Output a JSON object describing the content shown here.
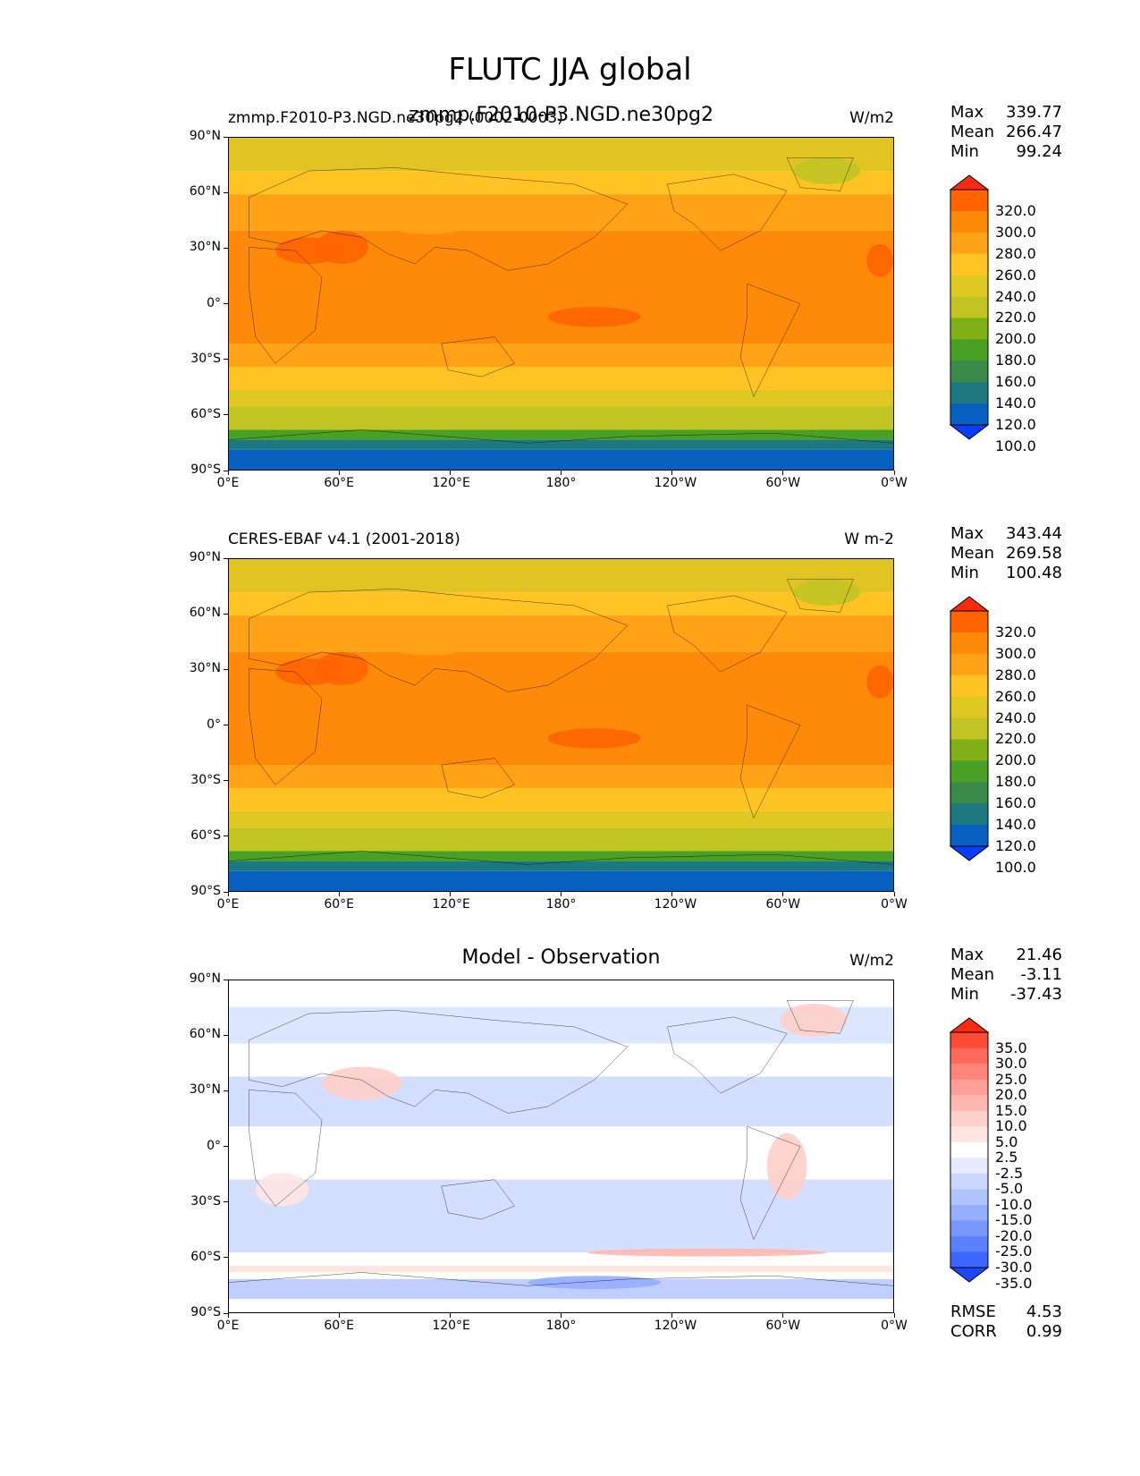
{
  "figure": {
    "title": "FLUTC JJA global"
  },
  "chart_data": [
    {
      "type": "heatmap",
      "title_left": "zmmp.F2010-P3.NGD.ne30pg2 (0002-0003)",
      "title_center": "zmmp.F2010-P3.NGD.ne30pg2",
      "units": "W/m2",
      "xtick_labels": [
        "0°E",
        "60°E",
        "120°E",
        "180°",
        "120°W",
        "60°W",
        "0°W"
      ],
      "ytick_labels": [
        "90°N",
        "60°N",
        "30°N",
        "0°",
        "30°S",
        "60°S",
        "90°S"
      ],
      "stats": {
        "Max": "339.77",
        "Mean": "266.47",
        "Min": "99.24"
      },
      "colorbar": {
        "levels": [
          "320.0",
          "300.0",
          "280.0",
          "260.0",
          "240.0",
          "220.0",
          "200.0",
          "180.0",
          "160.0",
          "140.0",
          "120.0",
          "100.0"
        ],
        "colors": [
          "#ff2a0a",
          "#ff6400",
          "#ff8a0a",
          "#ffa218",
          "#ffc423",
          "#e0c823",
          "#c2c423",
          "#80b015",
          "#48a025",
          "#3a8a4a",
          "#1e7880",
          "#0860c0",
          "#0a3cff"
        ]
      }
    },
    {
      "type": "heatmap",
      "title_left": "CERES-EBAF v4.1 (2001-2018)",
      "units": "W m-2",
      "xtick_labels": [
        "0°E",
        "60°E",
        "120°E",
        "180°",
        "120°W",
        "60°W",
        "0°W"
      ],
      "ytick_labels": [
        "90°N",
        "60°N",
        "30°N",
        "0°",
        "30°S",
        "60°S",
        "90°S"
      ],
      "stats": {
        "Max": "343.44",
        "Mean": "269.58",
        "Min": "100.48"
      },
      "colorbar": {
        "levels": [
          "320.0",
          "300.0",
          "280.0",
          "260.0",
          "240.0",
          "220.0",
          "200.0",
          "180.0",
          "160.0",
          "140.0",
          "120.0",
          "100.0"
        ],
        "colors": [
          "#ff2a0a",
          "#ff6400",
          "#ff8a0a",
          "#ffa218",
          "#ffc423",
          "#e0c823",
          "#c2c423",
          "#80b015",
          "#48a025",
          "#3a8a4a",
          "#1e7880",
          "#0860c0",
          "#0a3cff"
        ]
      }
    },
    {
      "type": "heatmap",
      "title_center": "Model - Observation",
      "units": "W/m2",
      "xtick_labels": [
        "0°E",
        "60°E",
        "120°E",
        "180°",
        "120°W",
        "60°W",
        "0°W"
      ],
      "ytick_labels": [
        "90°N",
        "60°N",
        "30°N",
        "0°",
        "30°S",
        "60°S",
        "90°S"
      ],
      "stats": {
        "Max": "21.46",
        "Mean": "-3.11",
        "Min": "-37.43"
      },
      "metrics": {
        "RMSE": "4.53",
        "CORR": "0.99"
      },
      "colorbar": {
        "levels": [
          "35.0",
          "30.0",
          "25.0",
          "20.0",
          "15.0",
          "10.0",
          "5.0",
          "2.5",
          "-2.5",
          "-5.0",
          "-10.0",
          "-15.0",
          "-20.0",
          "-25.0",
          "-30.0",
          "-35.0"
        ],
        "colors": [
          "#ff2a10",
          "#ff4a36",
          "#ff6a5a",
          "#ff857a",
          "#ff9e96",
          "#ffb7b0",
          "#ffcfca",
          "#ffe6e3",
          "#ffffff",
          "#e6ebff",
          "#ccd7ff",
          "#b0c2ff",
          "#95aeff",
          "#7898ff",
          "#5a80ff",
          "#3c66ff",
          "#1e46ff"
        ]
      }
    }
  ]
}
